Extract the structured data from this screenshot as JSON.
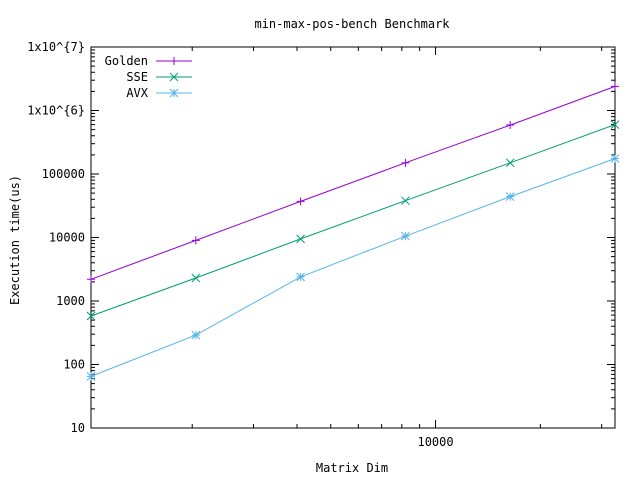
{
  "chart_data": {
    "type": "line",
    "title": "min-max-pos-bench Benchmark",
    "xlabel": "Matrix Dim",
    "ylabel": "Execution time(us)",
    "x_scale": "log",
    "y_scale": "log",
    "xlim": [
      1024,
      32768
    ],
    "ylim": [
      10,
      10000000
    ],
    "grid": false,
    "legend_position": "top-left",
    "x_ticks": [
      {
        "value": 10000,
        "label": "10000"
      }
    ],
    "y_ticks": [
      {
        "value": 10,
        "label": "10"
      },
      {
        "value": 100,
        "label": "100"
      },
      {
        "value": 1000,
        "label": "1000"
      },
      {
        "value": 10000,
        "label": "10000"
      },
      {
        "value": 100000,
        "label": "100000"
      },
      {
        "value": 1000000,
        "label": "1x10^{6}"
      },
      {
        "value": 10000000,
        "label": "1x10^{7}"
      }
    ],
    "x": [
      1024,
      2048,
      4096,
      8192,
      16384,
      32768
    ],
    "series": [
      {
        "name": "Golden",
        "color": "#9400d3",
        "marker": "plus",
        "values": [
          2200,
          9000,
          37000,
          150000,
          590000,
          2400000
        ]
      },
      {
        "name": "SSE",
        "color": "#009e73",
        "marker": "cross",
        "values": [
          580,
          2300,
          9500,
          38000,
          150000,
          600000
        ]
      },
      {
        "name": "AVX",
        "color": "#56b4e9",
        "marker": "star",
        "values": [
          65,
          290,
          2400,
          10500,
          44000,
          175000
        ]
      }
    ]
  }
}
